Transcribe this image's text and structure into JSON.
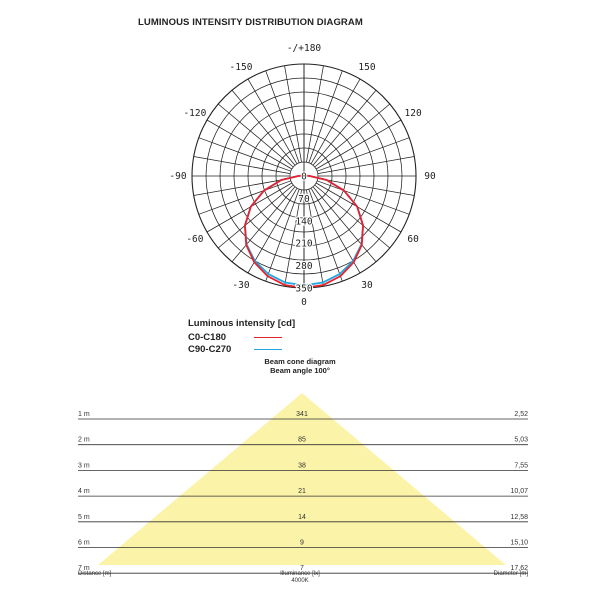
{
  "polar_title": "LUMINOUS INTENSITY DISTRIBUTION DIAGRAM",
  "legend": {
    "title": "Luminous intensity [cd]",
    "items": [
      {
        "label": "C0-C180",
        "color": "#e8212f"
      },
      {
        "label": "C90-C270",
        "color": "#1fa7e0"
      }
    ]
  },
  "cone": {
    "title": "Beam cone diagram",
    "subtitle": "Beam angle 100°",
    "footer_left": "Distance [m]",
    "footer_center": "Illuminance [lx]",
    "footer_center_sub": "4000K",
    "footer_right": "Diameter [m]",
    "fill_color": "#fbf3a8"
  },
  "chart_data": [
    {
      "type": "polar",
      "title": "LUMINOUS INTENSITY DISTRIBUTION DIAGRAM",
      "angle_labels": [
        "-/+180",
        "150",
        "120",
        "90",
        "60",
        "30",
        "0",
        "-30",
        "-60",
        "-90",
        "-120",
        "-150"
      ],
      "radial_labels": [
        "0",
        "70",
        "140",
        "210",
        "280",
        "350"
      ],
      "rmax": 350,
      "series": [
        {
          "name": "C0-C180",
          "color": "#e8212f",
          "points": [
            [
              0,
              350
            ],
            [
              10,
              346
            ],
            [
              20,
              333
            ],
            [
              30,
              311
            ],
            [
              40,
              281
            ],
            [
              50,
              241
            ],
            [
              60,
              192
            ],
            [
              70,
              133
            ],
            [
              80,
              72
            ],
            [
              90,
              18
            ],
            [
              100,
              6
            ],
            [
              110,
              3
            ],
            [
              120,
              2
            ]
          ]
        },
        {
          "name": "C90-C270",
          "color": "#1fa7e0",
          "points": [
            [
              0,
              342
            ],
            [
              10,
              338
            ],
            [
              20,
              326
            ],
            [
              30,
              307
            ],
            [
              40,
              279
            ],
            [
              50,
              241
            ],
            [
              60,
              192
            ],
            [
              70,
              133
            ],
            [
              80,
              72
            ],
            [
              90,
              18
            ],
            [
              100,
              6
            ],
            [
              110,
              3
            ],
            [
              120,
              2
            ]
          ]
        }
      ]
    },
    {
      "type": "table",
      "title": "Beam cone diagram",
      "subtitle": "Beam angle 100°",
      "columns": [
        "Distance [m]",
        "Illuminance [lx]",
        "Diameter [m]"
      ],
      "rows": [
        {
          "distance": "1 m",
          "illuminance": "341",
          "diameter": "2,52"
        },
        {
          "distance": "2 m",
          "illuminance": "85",
          "diameter": "5,03"
        },
        {
          "distance": "3 m",
          "illuminance": "38",
          "diameter": "7,55"
        },
        {
          "distance": "4 m",
          "illuminance": "21",
          "diameter": "10,07"
        },
        {
          "distance": "5 m",
          "illuminance": "14",
          "diameter": "12,58"
        },
        {
          "distance": "6 m",
          "illuminance": "9",
          "diameter": "15,10"
        },
        {
          "distance": "7 m",
          "illuminance": "7",
          "diameter": "17,62"
        }
      ]
    }
  ]
}
